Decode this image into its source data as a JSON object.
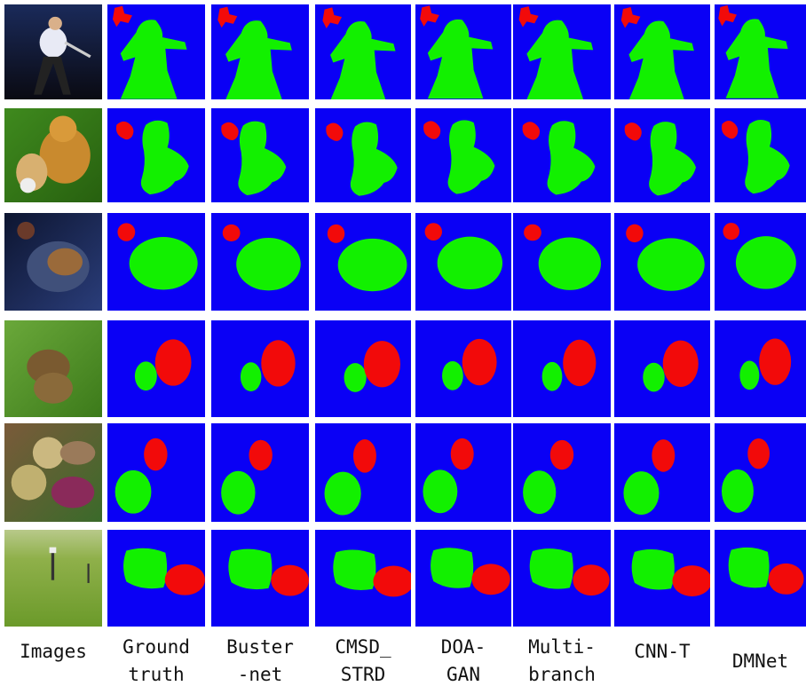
{
  "column_labels": [
    [
      "Images"
    ],
    [
      "Ground",
      "truth"
    ],
    [
      "Buster",
      "-net"
    ],
    [
      "CMSD_",
      "STRD"
    ],
    [
      "DOA-",
      "GAN"
    ],
    [
      "Multi-",
      "branch"
    ],
    [
      "CNN-T"
    ],
    [
      "DMNet"
    ]
  ]
}
